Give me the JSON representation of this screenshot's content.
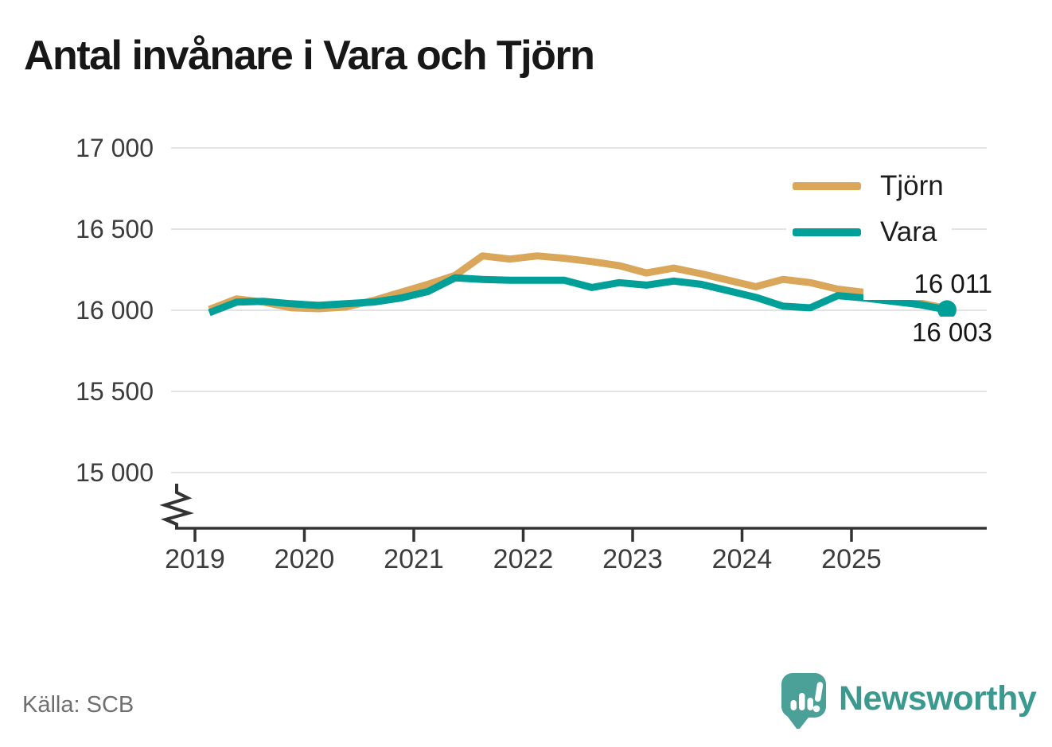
{
  "title": "Antal invånare i Vara och Tjörn",
  "source": "Källa: SCB",
  "branding": {
    "name": "Newsworthy",
    "logo_icon": "speech-bubble-bar-chart-icon",
    "color": "#3b9a8f",
    "icon_color": "#4ba197"
  },
  "legend": [
    {
      "label": "Tjörn",
      "color": "#d9a65a"
    },
    {
      "label": "Vara",
      "color": "#00a098"
    }
  ],
  "end_labels": {
    "tjorn": "16 011",
    "vara": "16 003"
  },
  "chart_data": {
    "type": "line",
    "title": "Antal invånare i Vara och Tjörn",
    "xlabel": "",
    "ylabel": "",
    "grid": "horizontal",
    "legend_position": "top-right",
    "axis_break_at_bottom": true,
    "ylim": [
      14800,
      17000
    ],
    "yticks": [
      "17 000",
      "16 500",
      "16 000",
      "15 500",
      "15 000"
    ],
    "xticks": [
      "2019",
      "2020",
      "2021",
      "2022",
      "2023",
      "2024",
      "2025"
    ],
    "x": [
      "2019 Q1",
      "2019 Q2",
      "2019 Q3",
      "2019 Q4",
      "2020 Q1",
      "2020 Q2",
      "2020 Q3",
      "2020 Q4",
      "2021 Q1",
      "2021 Q2",
      "2021 Q3",
      "2021 Q4",
      "2022 Q1",
      "2022 Q2",
      "2022 Q3",
      "2022 Q4",
      "2023 Q1",
      "2023 Q2",
      "2023 Q3",
      "2023 Q4",
      "2024 Q1",
      "2024 Q2",
      "2024 Q3",
      "2024 Q4",
      "2025 Q1",
      "2025 Q2",
      "2025 Q3",
      "2025 Q4"
    ],
    "series": [
      {
        "name": "Tjörn",
        "color": "#d9a65a",
        "end_label": "16 011",
        "end_dot": false,
        "values": [
          16005,
          16070,
          16050,
          16015,
          16010,
          16020,
          16060,
          16110,
          16160,
          16215,
          16335,
          16315,
          16335,
          16320,
          16300,
          16275,
          16230,
          16260,
          16225,
          16185,
          16145,
          16190,
          16170,
          16130,
          16110,
          16085,
          16045,
          16011
        ]
      },
      {
        "name": "Vara",
        "color": "#00a098",
        "end_label": "16 003",
        "end_dot": true,
        "values": [
          15985,
          16050,
          16055,
          16040,
          16030,
          16040,
          16050,
          16075,
          16115,
          16200,
          16190,
          16185,
          16185,
          16185,
          16140,
          16170,
          16155,
          16180,
          16160,
          16120,
          16080,
          16025,
          16015,
          16090,
          16075,
          16055,
          16035,
          16003
        ]
      }
    ]
  }
}
